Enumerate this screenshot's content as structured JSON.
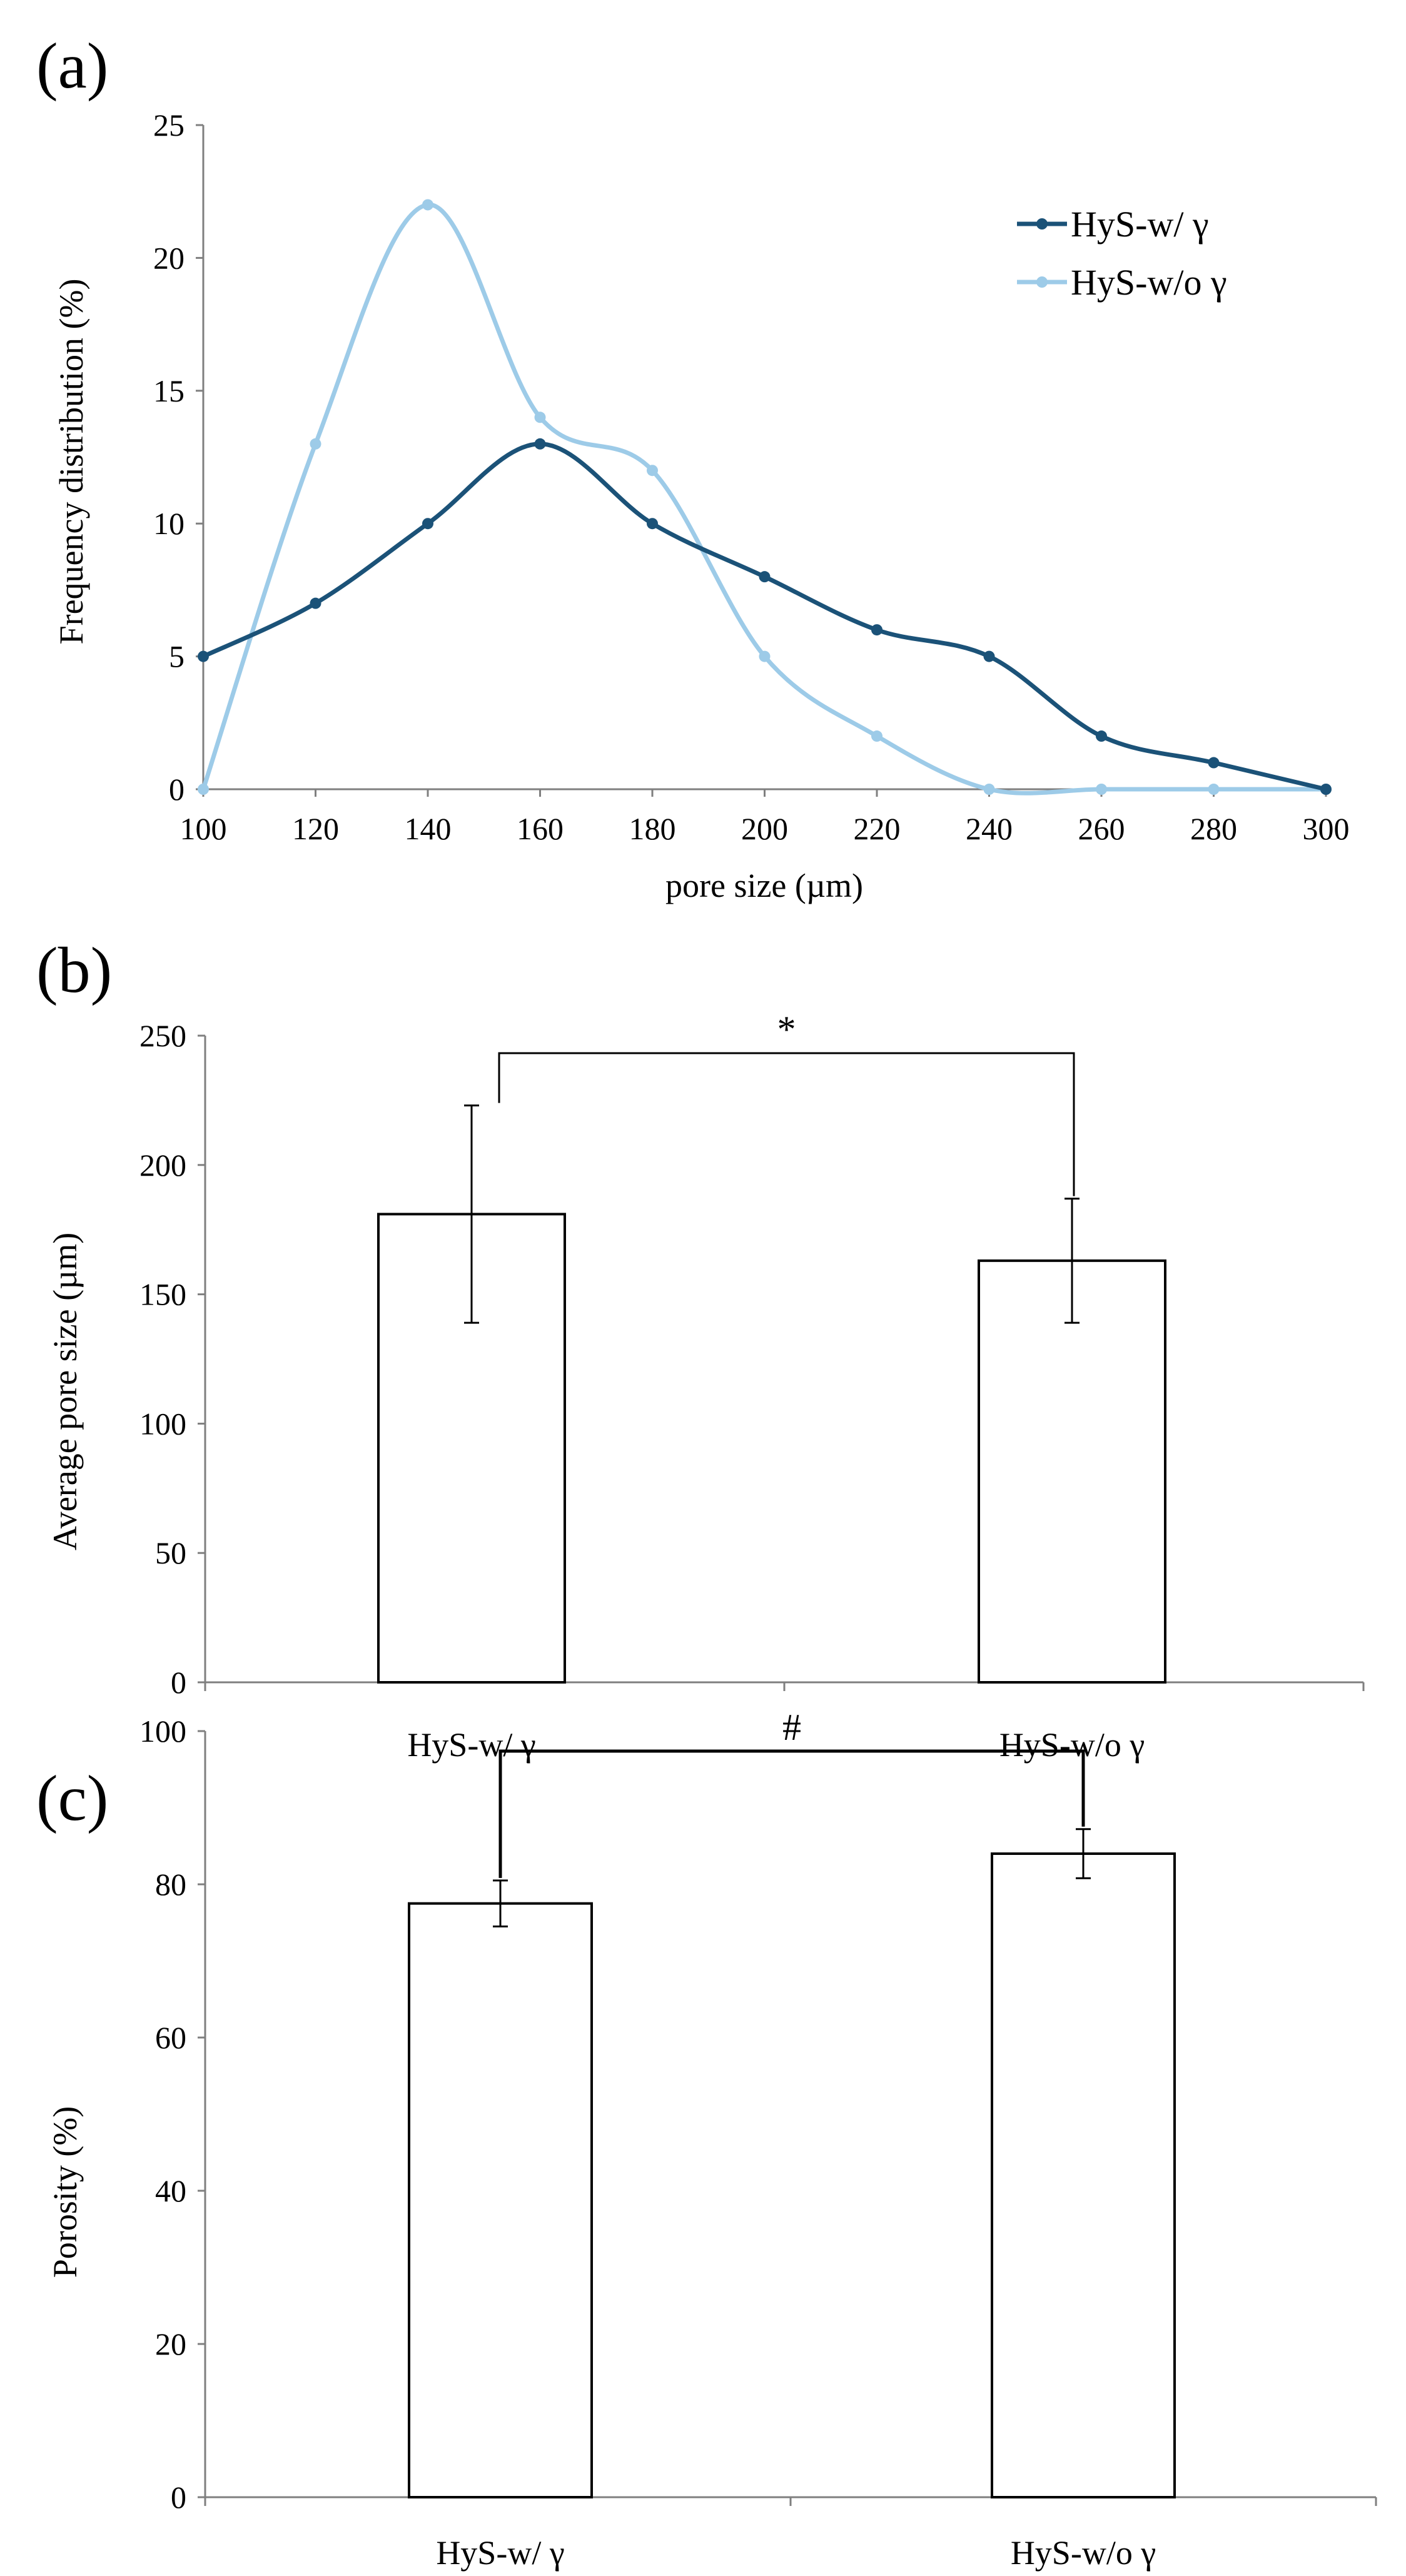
{
  "colors": {
    "series_dark": "#1b5278",
    "series_light": "#9dcbe8",
    "axis": "#7f7f7f",
    "bar_stroke": "#000000",
    "bar_fill": "#ffffff"
  },
  "chart_data": [
    {
      "panel": "(a)",
      "type": "line",
      "title": "",
      "xlabel": "pore size (µm)",
      "ylabel": "Frequency distribution (%)",
      "x": [
        100,
        120,
        140,
        160,
        180,
        200,
        220,
        240,
        260,
        280,
        300
      ],
      "xlim": [
        100,
        300
      ],
      "ylim": [
        0,
        25
      ],
      "x_ticks": [
        "100",
        "120",
        "140",
        "160",
        "180",
        "200",
        "220",
        "240",
        "260",
        "280",
        "300"
      ],
      "y_ticks": [
        "0",
        "5",
        "10",
        "15",
        "20",
        "25"
      ],
      "legend_position": "top-right",
      "series": [
        {
          "name": "HyS-w/ γ",
          "color_key": "series_dark",
          "values": [
            5,
            7,
            10,
            13,
            10,
            8,
            6,
            5,
            2,
            1,
            0
          ]
        },
        {
          "name": "HyS-w/o γ",
          "color_key": "series_light",
          "values": [
            0,
            13,
            22,
            14,
            12,
            5,
            2,
            0,
            0,
            0,
            0
          ]
        }
      ]
    },
    {
      "panel": "(b)",
      "type": "bar",
      "title": "",
      "xlabel": "",
      "ylabel": "Average pore size (µm)",
      "categories": [
        "HyS-w/ γ",
        "HyS-w/o γ"
      ],
      "values": [
        181,
        163
      ],
      "errors": [
        42,
        24
      ],
      "ylim": [
        0,
        250
      ],
      "y_ticks": [
        "0",
        "50",
        "100",
        "150",
        "200",
        "250"
      ],
      "significance": {
        "label": "*",
        "between": [
          0,
          1
        ]
      }
    },
    {
      "panel": "(c)",
      "type": "bar",
      "title": "",
      "xlabel": "",
      "ylabel": "Porosity (%)",
      "categories": [
        "HyS-w/ γ",
        "HyS-w/o γ"
      ],
      "values": [
        77.5,
        84
      ],
      "errors": [
        3,
        3.2
      ],
      "ylim": [
        0,
        100
      ],
      "y_ticks": [
        "0",
        "20",
        "40",
        "60",
        "80",
        "100"
      ],
      "significance": {
        "label": "#",
        "between": [
          0,
          1
        ]
      }
    }
  ]
}
